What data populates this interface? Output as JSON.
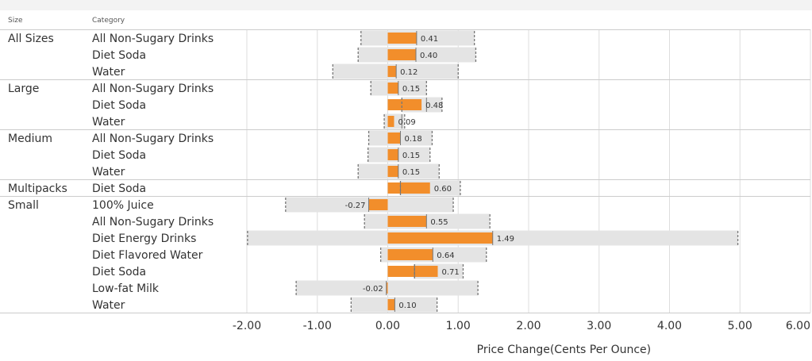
{
  "headers": {
    "size": "Size",
    "category": "Category"
  },
  "chart_data": {
    "type": "bar",
    "orientation": "horizontal",
    "xlabel": "Price Change(Cents Per Ounce)",
    "xlim": [
      -2.0,
      6.0
    ],
    "xticks": [
      "-2.00",
      "-1.00",
      "0.00",
      "1.00",
      "2.00",
      "3.00",
      "4.00",
      "5.00",
      "6.00"
    ],
    "tick_values": [
      -2,
      -1,
      0,
      1,
      2,
      3,
      4,
      5,
      6
    ],
    "colors": {
      "bar": "#f28e2b",
      "band": "#e4e4e4",
      "whisker": "#777777",
      "grid": "#dddddd"
    },
    "groups": [
      {
        "size": "All Sizes",
        "rows": [
          {
            "category": "All Non-Sugary Drinks",
            "value": 0.41,
            "label": "0.41",
            "low": -0.38,
            "high": 1.23,
            "ref": 0.41
          },
          {
            "category": "Diet Soda",
            "value": 0.4,
            "label": "0.40",
            "low": -0.42,
            "high": 1.25,
            "ref": 0.4
          },
          {
            "category": "Water",
            "value": 0.12,
            "label": "0.12",
            "low": -0.78,
            "high": 1.0,
            "ref": 0.12
          }
        ]
      },
      {
        "size": "Large",
        "rows": [
          {
            "category": "All Non-Sugary Drinks",
            "value": 0.15,
            "label": "0.15",
            "low": -0.24,
            "high": 0.55,
            "ref": 0.15
          },
          {
            "category": "Diet Soda",
            "value": 0.48,
            "label": "0.48",
            "low": 0.2,
            "high": 0.77,
            "ref": 0.55
          },
          {
            "category": "Water",
            "value": 0.09,
            "label": "0.09",
            "low": -0.05,
            "high": 0.24,
            "ref": 0.2
          }
        ]
      },
      {
        "size": "Medium",
        "rows": [
          {
            "category": "All Non-Sugary Drinks",
            "value": 0.18,
            "label": "0.18",
            "low": -0.27,
            "high": 0.63,
            "ref": 0.18
          },
          {
            "category": "Diet Soda",
            "value": 0.15,
            "label": "0.15",
            "low": -0.28,
            "high": 0.6,
            "ref": 0.15
          },
          {
            "category": "Water",
            "value": 0.15,
            "label": "0.15",
            "low": -0.42,
            "high": 0.73,
            "ref": 0.15
          }
        ]
      },
      {
        "size": "Multipacks",
        "rows": [
          {
            "category": "Diet Soda",
            "value": 0.6,
            "label": "0.60",
            "low": 0.18,
            "high": 1.03,
            "ref": 0.18
          }
        ]
      },
      {
        "size": "Small",
        "rows": [
          {
            "category": "100% Juice",
            "value": -0.27,
            "label": "-0.27",
            "low": -1.45,
            "high": 0.93,
            "ref": -0.27
          },
          {
            "category": "All Non-Sugary Drinks",
            "value": 0.55,
            "label": "0.55",
            "low": -0.33,
            "high": 1.45,
            "ref": 0.55
          },
          {
            "category": "Diet Energy Drinks",
            "value": 1.49,
            "label": "1.49",
            "low": -1.99,
            "high": 4.97,
            "ref": 1.49
          },
          {
            "category": "Diet Flavored Water",
            "value": 0.64,
            "label": "0.64",
            "low": -0.1,
            "high": 1.4,
            "ref": 0.64
          },
          {
            "category": "Diet Soda",
            "value": 0.71,
            "label": "0.71",
            "low": 0.38,
            "high": 1.07,
            "ref": 0.38
          },
          {
            "category": "Low-fat Milk",
            "value": -0.02,
            "label": "-0.02",
            "low": -1.3,
            "high": 1.28,
            "ref": -0.02
          },
          {
            "category": "Water",
            "value": 0.1,
            "label": "0.10",
            "low": -0.52,
            "high": 0.7,
            "ref": 0.1
          }
        ]
      }
    ]
  }
}
